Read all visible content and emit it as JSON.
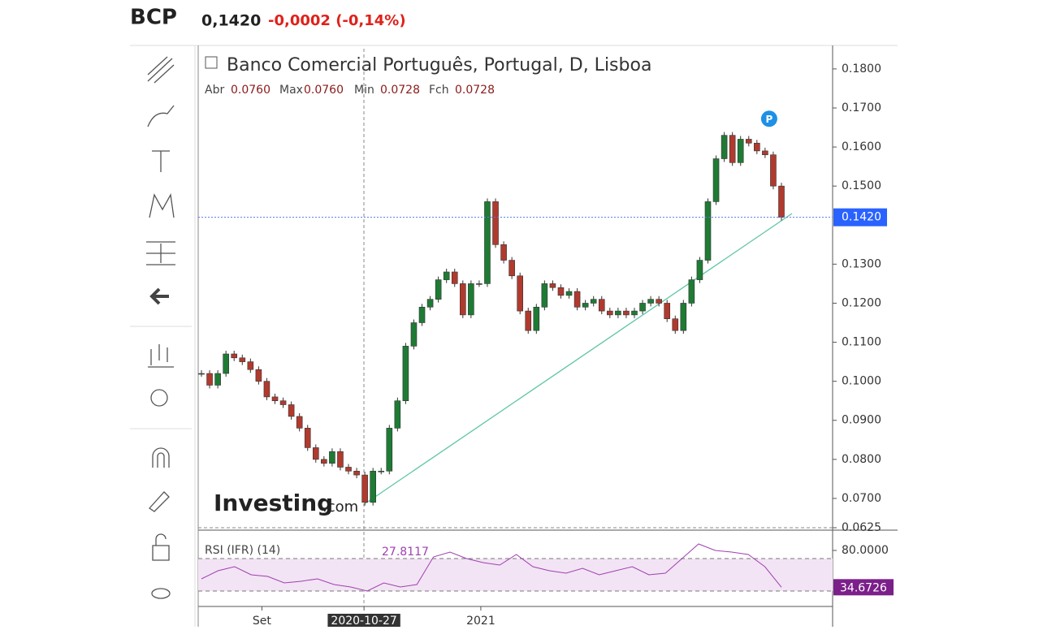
{
  "chart_data": {
    "type": "candlestick",
    "symbol": "BCP",
    "price": "0,1420",
    "change": "-0,0002 (-0,14%)",
    "title": "Banco Comercial Português, Portugal, D, Lisboa",
    "ohlc_labels": [
      "Abr",
      "Max",
      "Min",
      "Fch"
    ],
    "ohlc_values": [
      "0.0760",
      "0.0760",
      "0.0728",
      "0.0728"
    ],
    "logo": [
      "Investing",
      ".com"
    ],
    "marker": "P",
    "up_color": "#1e7b34",
    "down_color": "#b03a2e",
    "closes": [
      0.102,
      0.099,
      0.102,
      0.107,
      0.106,
      0.105,
      0.103,
      0.1,
      0.096,
      0.095,
      0.094,
      0.091,
      0.088,
      0.083,
      0.08,
      0.079,
      0.082,
      0.078,
      0.077,
      0.076,
      0.069,
      0.077,
      0.077,
      0.088,
      0.095,
      0.109,
      0.115,
      0.119,
      0.121,
      0.126,
      0.128,
      0.125,
      0.117,
      0.125,
      0.125,
      0.146,
      0.135,
      0.131,
      0.127,
      0.118,
      0.113,
      0.119,
      0.125,
      0.124,
      0.122,
      0.123,
      0.119,
      0.12,
      0.121,
      0.118,
      0.117,
      0.118,
      0.117,
      0.118,
      0.12,
      0.121,
      0.12,
      0.116,
      0.113,
      0.12,
      0.126,
      0.131,
      0.146,
      0.157,
      0.163,
      0.156,
      0.162,
      0.161,
      0.159,
      0.158,
      0.15,
      0.142
    ],
    "xlim": [
      0,
      71
    ],
    "xticks": [
      {
        "value": 7.4,
        "label": "Set"
      },
      {
        "value": 19.9,
        "label": "2020-10-27"
      },
      {
        "value": 34.2,
        "label": "2021"
      }
    ],
    "ylim": [
      0.0625,
      0.1858
    ],
    "yticks": [
      {
        "value": 0.18,
        "label": "0.1800"
      },
      {
        "value": 0.17,
        "label": "0.1700"
      },
      {
        "value": 0.16,
        "label": "0.1600"
      },
      {
        "value": 0.15,
        "label": "0.1500"
      },
      {
        "value": 0.13,
        "label": "0.1300"
      },
      {
        "value": 0.12,
        "label": "0.1200"
      },
      {
        "value": 0.11,
        "label": "0.1100"
      },
      {
        "value": 0.1,
        "label": "0.1000"
      },
      {
        "value": 0.09,
        "label": "0.0900"
      },
      {
        "value": 0.08,
        "label": "0.0800"
      },
      {
        "value": 0.07,
        "label": "0.0700"
      },
      {
        "value": 0.0625,
        "label": "0.0625"
      }
    ],
    "last": {
      "value": 0.142,
      "label": "0.1420"
    },
    "rsi": {
      "name": "RSI (IFR) (14)",
      "cursor_value": "27.8117",
      "color": "#a040b0",
      "values": [
        45,
        55,
        60,
        50,
        48,
        40,
        42,
        45,
        38,
        35,
        30,
        40,
        35,
        38,
        72,
        78,
        70,
        65,
        62,
        75,
        60,
        55,
        52,
        58,
        50,
        55,
        60,
        50,
        52,
        70,
        88,
        80,
        78,
        75,
        60,
        34.6726
      ],
      "ylim": [
        13,
        103
      ],
      "yticks": [
        {
          "value": 80,
          "label": "80.0000"
        }
      ],
      "bands": [
        30,
        70
      ],
      "last": {
        "value": 34.6726,
        "label": "34.6726"
      }
    }
  }
}
